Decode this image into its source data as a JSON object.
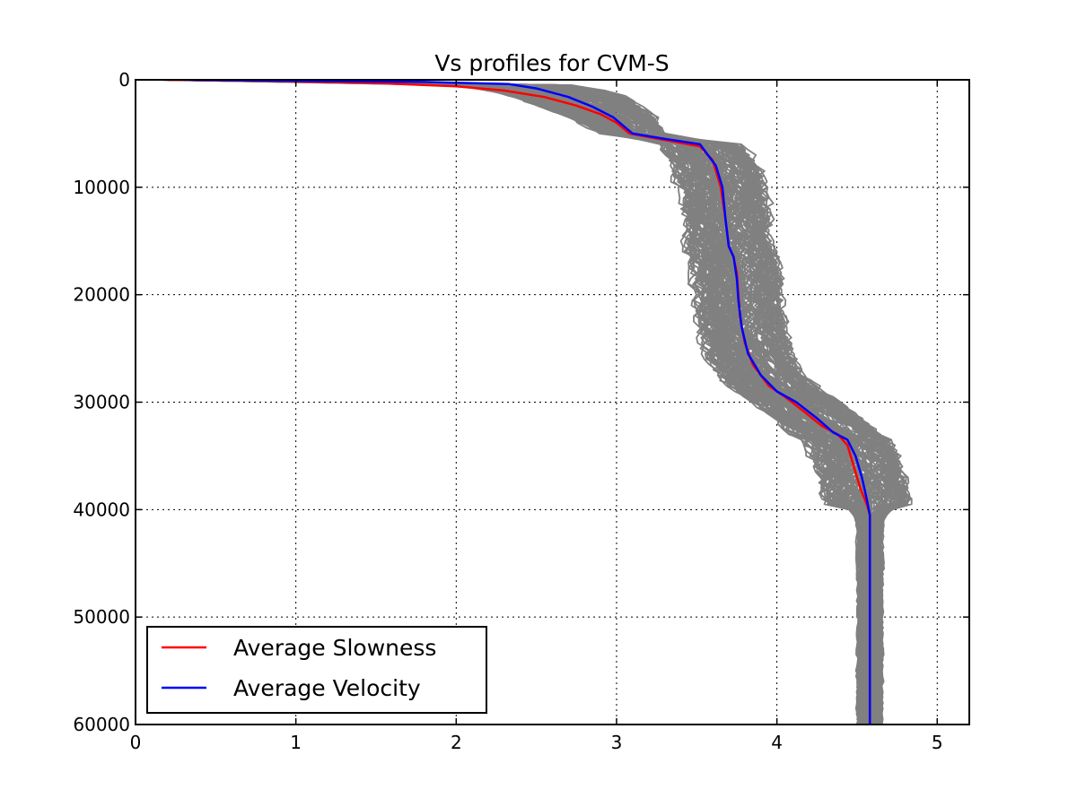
{
  "chart_data": {
    "type": "line",
    "title": "Vs profiles for CVM-S",
    "xlabel": "",
    "ylabel": "",
    "xlim": [
      0,
      5.2
    ],
    "ylim": [
      60000,
      0
    ],
    "y_inverted": true,
    "grid": true,
    "legend_placement": "lower-left",
    "xticks": [
      "0",
      "1",
      "2",
      "3",
      "4",
      "5"
    ],
    "yticks": [
      "0",
      "10000",
      "20000",
      "30000",
      "40000",
      "50000",
      "60000"
    ],
    "colors": {
      "profiles": "#808080",
      "slowness": "#ff0000",
      "velocity": "#0000ff"
    },
    "series": [
      {
        "name": "Average Slowness",
        "color": "#ff0000",
        "x": [
          0.2,
          0.8,
          1.5,
          2.0,
          2.3,
          2.55,
          2.75,
          2.9,
          3.0,
          3.08,
          3.3,
          3.52,
          3.6,
          3.65,
          3.68,
          3.7,
          3.73,
          3.75,
          3.76,
          3.77,
          3.8,
          3.85,
          3.95,
          4.05,
          4.18,
          4.28,
          4.38,
          4.44,
          4.48,
          4.52,
          4.56,
          4.58,
          4.58
        ],
        "y": [
          0,
          100,
          300,
          600,
          1000,
          1600,
          2400,
          3200,
          4000,
          5000,
          5600,
          6200,
          7500,
          10000,
          13000,
          15500,
          16500,
          18000,
          20000,
          22000,
          24500,
          26500,
          28500,
          29500,
          31000,
          32200,
          33000,
          34000,
          36000,
          38000,
          39500,
          40500,
          60000
        ]
      },
      {
        "name": "Average Velocity",
        "color": "#0000ff",
        "x": [
          0.3,
          1.0,
          1.8,
          2.33,
          2.5,
          2.7,
          2.85,
          2.98,
          3.1,
          3.3,
          3.52,
          3.62,
          3.66,
          3.68,
          3.7,
          3.73,
          3.75,
          3.76,
          3.78,
          3.82,
          3.9,
          4.0,
          4.12,
          4.25,
          4.35,
          4.44,
          4.49,
          4.53,
          4.56,
          4.58,
          4.58
        ],
        "y": [
          0,
          100,
          200,
          400,
          800,
          1600,
          2500,
          3500,
          5000,
          5500,
          6000,
          8000,
          10000,
          13000,
          15500,
          16500,
          18500,
          20500,
          23000,
          25500,
          27500,
          29000,
          30000,
          31500,
          32800,
          33500,
          35000,
          37000,
          39000,
          40500,
          60000
        ]
      }
    ]
  }
}
